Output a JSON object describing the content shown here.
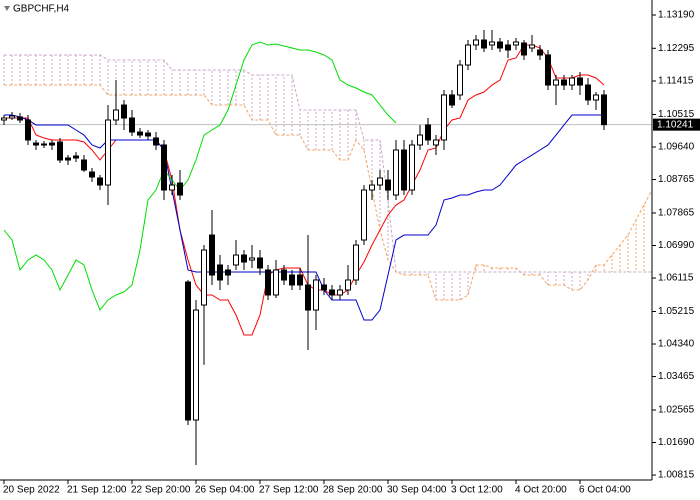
{
  "chart_data": {
    "type": "candlestick",
    "title": "GBPCHF,H4",
    "categories": [
      "20 Sep 2022",
      null,
      null,
      null,
      null,
      null,
      null,
      null,
      "21 Sep 12:00",
      null,
      null,
      null,
      null,
      null,
      null,
      null,
      "22 Sep 20:00",
      null,
      null,
      null,
      null,
      null,
      null,
      null,
      "26 Sep 04:00",
      null,
      null,
      null,
      null,
      null,
      null,
      null,
      "27 Sep 12:00",
      null,
      null,
      null,
      null,
      null,
      null,
      null,
      "28 Sep 20:00",
      null,
      null,
      null,
      null,
      null,
      null,
      null,
      "30 Sep 04:00",
      null,
      null,
      null,
      null,
      null,
      null,
      null,
      "3 Oct 12:00",
      null,
      null,
      null,
      null,
      null,
      null,
      null,
      "4 Oct 20:00",
      null,
      null,
      null,
      null,
      null,
      null,
      null,
      "6 Oct 04:00",
      null,
      null,
      null,
      null,
      null,
      null,
      null,
      null,
      null
    ],
    "open": [
      1.10366,
      1.1042,
      1.10447,
      1.10366,
      1.09747,
      1.0972,
      1.09747,
      1.09774,
      1.09344,
      1.09398,
      1.0929,
      1.08967,
      1.08806,
      1.08617,
      1.10366,
      1.10769,
      1.1042,
      1.10043,
      1.10016,
      1.09882,
      1.09694,
      1.08483,
      1.08671,
      1.06008,
      1.02296,
      1.05389,
      1.07272,
      1.06466,
      1.06331,
      1.06466,
      1.06734,
      1.066,
      1.06654,
      1.06331,
      1.05659,
      1.06331,
      1.06196,
      1.06196,
      1.05928,
      1.05254,
      1.05928,
      1.05793,
      1.05659,
      1.05793,
      1.06062,
      1.07138,
      1.08483,
      1.08617,
      1.08752,
      1.08348,
      1.09559,
      1.08483,
      1.09694,
      1.10232,
      1.09694,
      1.09828,
      1.11039,
      1.11039,
      1.11845,
      1.12384,
      1.12518,
      1.12384,
      1.12464,
      1.12384,
      1.12384,
      1.12437,
      1.12303,
      1.12249,
      1.12115,
      1.11307,
      1.11442,
      1.11307,
      1.11496,
      1.11307,
      1.10904,
      1.11039,
      null,
      null,
      null,
      null,
      null,
      null
    ],
    "high": [
      1.105,
      1.10581,
      1.10554,
      1.105,
      1.09828,
      1.09801,
      1.09828,
      1.09882,
      1.09424,
      1.09505,
      1.09424,
      1.09075,
      1.08886,
      1.10769,
      1.11442,
      1.10904,
      1.10635,
      1.10151,
      1.10097,
      1.10043,
      1.09828,
      1.08886,
      1.09021,
      1.06062,
      1.05524,
      1.07003,
      1.07945,
      1.06734,
      1.06466,
      1.07138,
      1.06869,
      1.07003,
      1.06869,
      1.06466,
      1.066,
      1.06466,
      1.06331,
      1.06385,
      1.07272,
      1.06196,
      1.06116,
      1.05928,
      1.05928,
      1.06466,
      1.07138,
      1.08617,
      1.08752,
      1.09021,
      1.09021,
      1.09828,
      1.09828,
      1.09828,
      1.10232,
      1.1042,
      1.09962,
      1.11173,
      1.11173,
      1.1198,
      1.12518,
      1.12653,
      1.12787,
      1.12787,
      1.12572,
      1.12518,
      1.12572,
      1.12518,
      1.12653,
      1.12384,
      1.12249,
      1.11576,
      1.11576,
      1.11576,
      1.11657,
      1.11496,
      1.11119,
      1.11173,
      null,
      null,
      null,
      null,
      null,
      null
    ],
    "low": [
      1.10232,
      1.10366,
      1.10285,
      1.09694,
      1.09559,
      1.09613,
      1.09559,
      1.09209,
      1.09155,
      1.09236,
      1.08967,
      1.08698,
      1.08483,
      1.08079,
      1.10232,
      1.10097,
      1.09936,
      1.09882,
      1.09828,
      1.09559,
      1.08214,
      1.08348,
      1.08214,
      1.02161,
      1.01086,
      1.03779,
      1.05928,
      1.05793,
      1.05928,
      1.06331,
      1.06331,
      1.06385,
      1.06196,
      1.05524,
      1.05578,
      1.05928,
      1.05793,
      1.05793,
      1.04179,
      1.04717,
      1.05659,
      1.05524,
      1.05524,
      1.05659,
      1.05928,
      1.07003,
      1.08214,
      1.08483,
      1.08214,
      1.08214,
      1.08348,
      1.08348,
      1.09559,
      1.09694,
      1.09424,
      1.09559,
      1.10689,
      1.10904,
      1.11711,
      1.12249,
      1.12195,
      1.12249,
      1.12195,
      1.12034,
      1.12249,
      1.1198,
      1.12195,
      1.1198,
      1.11173,
      1.10769,
      1.11173,
      1.11173,
      1.11039,
      1.10769,
      1.10635,
      1.10097,
      null,
      null,
      null,
      null,
      null,
      null
    ],
    "close": [
      1.1042,
      1.10474,
      1.10366,
      1.09828,
      1.09694,
      1.09694,
      1.09694,
      1.0929,
      1.0929,
      1.09344,
      1.09021,
      1.08833,
      1.08617,
      1.10366,
      1.10635,
      1.1042,
      1.10043,
      1.09962,
      1.09936,
      1.09694,
      1.08483,
      1.08617,
      1.08348,
      1.02296,
      1.05254,
      1.06869,
      1.06196,
      1.06062,
      1.06196,
      1.06734,
      1.06546,
      1.06654,
      1.06385,
      1.05659,
      1.06331,
      1.06062,
      1.05928,
      1.05928,
      1.05254,
      1.06062,
      1.05793,
      1.05659,
      1.05793,
      1.06062,
      1.07003,
      1.08483,
      1.08617,
      1.08806,
      1.08483,
      1.09559,
      1.08483,
      1.09694,
      1.09962,
      1.09828,
      1.09828,
      1.11039,
      1.10769,
      1.11845,
      1.12384,
      1.12518,
      1.12303,
      1.12464,
      1.12303,
      1.12249,
      1.12464,
      1.12115,
      1.12384,
      1.12115,
      1.11307,
      1.11442,
      1.11307,
      1.11496,
      1.11307,
      1.10904,
      1.11039,
      1.10241,
      null,
      null,
      null,
      null,
      null,
      null
    ],
    "candle_colors": {
      "up": "#ffffff",
      "down": "#000000",
      "outline": "#000000"
    },
    "lines": [
      {
        "color": "#ff0000",
        "values": [
          1.1042,
          1.1042,
          1.1042,
          1.1042,
          1.09962,
          1.09882,
          1.09828,
          1.09828,
          1.09828,
          1.09828,
          1.09774,
          1.09559,
          1.0929,
          1.09559,
          1.09828,
          1.09828,
          1.09828,
          1.09828,
          1.09828,
          1.09828,
          1.09559,
          1.08752,
          1.07407,
          1.066,
          1.05928,
          1.05659,
          1.05659,
          1.05524,
          1.05524,
          1.05121,
          1.04583,
          1.04583,
          1.05121,
          1.06196,
          1.06331,
          1.06385,
          1.06385,
          1.06385,
          1.05928,
          1.05793,
          1.05793,
          1.05659,
          1.05659,
          1.05793,
          1.06196,
          1.06546,
          1.07003,
          1.07407,
          1.07811,
          1.08079,
          1.08214,
          1.08617,
          1.09021,
          1.09559,
          1.09613,
          1.10097,
          1.10366,
          1.1042,
          1.10904,
          1.11039,
          1.11119,
          1.11307,
          1.11442,
          1.1198,
          1.12034,
          1.12384,
          1.12384,
          1.12303,
          1.12034,
          1.11496,
          1.11496,
          1.11496,
          1.11576,
          1.11576,
          1.11496,
          1.11307,
          null,
          null,
          null,
          null,
          null,
          null
        ]
      },
      {
        "color": "#0000cc",
        "values": [
          1.105,
          1.105,
          1.10447,
          1.10366,
          1.10232,
          1.10232,
          1.10232,
          1.10232,
          1.10232,
          1.10097,
          1.09962,
          1.09694,
          1.09613,
          1.09828,
          1.09828,
          1.09828,
          1.09828,
          1.09828,
          1.09828,
          1.09828,
          1.09559,
          1.08483,
          1.07407,
          1.06331,
          1.06277,
          1.06277,
          1.06277,
          1.06277,
          1.06277,
          1.06277,
          1.06277,
          1.06277,
          1.06277,
          1.06277,
          1.06277,
          1.06277,
          1.06277,
          1.06277,
          1.06277,
          1.06277,
          1.05793,
          1.05524,
          1.05524,
          1.05524,
          1.05524,
          1.04986,
          1.04986,
          1.05254,
          1.06196,
          1.07138,
          1.07272,
          1.07272,
          1.07272,
          1.07272,
          1.07541,
          1.08214,
          1.08268,
          1.08348,
          1.08348,
          1.08429,
          1.08483,
          1.08483,
          1.08617,
          1.08886,
          1.09155,
          1.0929,
          1.09424,
          1.09559,
          1.09694,
          1.09962,
          1.10232,
          1.105,
          1.105,
          1.105,
          1.105,
          1.105,
          null,
          null,
          null,
          null,
          null,
          null
        ]
      },
      {
        "color": "#00dd00",
        "values": [
          1.07407,
          1.07138,
          1.06331,
          1.066,
          1.06734,
          1.066,
          1.06331,
          1.05793,
          1.06196,
          1.066,
          1.06466,
          1.05793,
          1.05254,
          1.05524,
          1.05659,
          1.0574,
          1.05928,
          1.06869,
          1.08214,
          1.08483,
          1.09021,
          1.08752,
          1.08483,
          1.08752,
          1.0929,
          1.09962,
          1.10097,
          1.10232,
          1.10635,
          1.11307,
          1.1198,
          1.12384,
          1.12464,
          1.12384,
          1.1241,
          1.12357,
          1.12303,
          1.12249,
          1.12249,
          1.12195,
          1.12115,
          1.1198,
          1.11442,
          1.11307,
          1.11227,
          1.11119,
          1.11039,
          1.10769,
          1.105,
          1.10285,
          null,
          null,
          null,
          null,
          null,
          null,
          null,
          null,
          null,
          null,
          null,
          null,
          null,
          null,
          null,
          null,
          null,
          null,
          null,
          null,
          null,
          null,
          null,
          null,
          null,
          null,
          null,
          null,
          null,
          null,
          null,
          null
        ]
      }
    ],
    "span_a": {
      "color": "#f4a460",
      "values": [
        1.11307,
        1.11307,
        1.11307,
        1.11307,
        1.11307,
        1.11307,
        1.11307,
        1.11307,
        1.11307,
        1.11307,
        1.11307,
        1.11307,
        1.11307,
        1.11039,
        1.11039,
        1.11039,
        1.11039,
        1.11039,
        1.11039,
        1.11039,
        1.11039,
        1.11039,
        1.11039,
        1.11039,
        1.11039,
        1.11039,
        1.10769,
        1.10769,
        1.10769,
        1.10769,
        1.10769,
        1.10366,
        1.10366,
        1.10366,
        1.09962,
        1.09962,
        1.09962,
        1.09962,
        1.09559,
        1.09559,
        1.09559,
        1.09559,
        1.0929,
        1.0929,
        1.09828,
        1.09559,
        1.08483,
        1.07407,
        1.066,
        1.06277,
        1.06196,
        1.06196,
        1.06196,
        1.06196,
        1.05524,
        1.05524,
        1.05524,
        1.05524,
        1.05659,
        1.06466,
        1.06466,
        1.06385,
        1.06385,
        1.06385,
        1.06385,
        1.06196,
        1.06196,
        1.06196,
        1.05928,
        1.05928,
        1.05928,
        1.05793,
        1.05793,
        1.06062,
        1.06466,
        1.06466,
        1.06734,
        1.07003,
        1.07272,
        1.07676,
        1.08079,
        1.08483
      ]
    },
    "span_b": {
      "color": "#c8a8c8",
      "values": [
        1.12115,
        1.12115,
        1.12115,
        1.12115,
        1.12115,
        1.12115,
        1.12115,
        1.12115,
        1.12115,
        1.12115,
        1.12115,
        1.12115,
        1.12115,
        1.1198,
        1.1198,
        1.1198,
        1.1198,
        1.1198,
        1.1198,
        1.1198,
        1.1198,
        1.11711,
        1.11711,
        1.11711,
        1.11711,
        1.11711,
        1.11711,
        1.11711,
        1.11711,
        1.11711,
        1.11711,
        1.11576,
        1.11576,
        1.11576,
        1.11576,
        1.11576,
        1.11576,
        1.10635,
        1.10635,
        1.10635,
        1.10635,
        1.10635,
        1.10635,
        1.10635,
        1.10635,
        1.09828,
        1.09828,
        1.09828,
        1.08214,
        1.06277,
        1.06277,
        1.06277,
        1.06277,
        1.06277,
        1.06277,
        1.06277,
        1.06277,
        1.06277,
        1.06277,
        1.06277,
        1.06277,
        1.06277,
        1.06277,
        1.06277,
        1.06277,
        1.06277,
        1.06277,
        1.06277,
        1.06277,
        1.06277,
        1.06277,
        1.06277,
        1.06277,
        1.06277,
        1.06277,
        1.06277,
        1.06277,
        1.06277,
        1.06277,
        1.06277,
        1.06277,
        1.06277
      ]
    },
    "cloud_colors": {
      "up": "#f4a460",
      "down": "#c8a8c8"
    },
    "current_price": 1.10241,
    "ylim": [
      1.00682,
      1.13594
    ],
    "yticks": [
      {
        "value": 1.1319,
        "label": "1.13190"
      },
      1.12295,
      1.11415,
      1.10515,
      {
        "value": 1.0964,
        "label": "1.09640"
      },
      1.08765,
      1.07865,
      {
        "value": 1.0699,
        "label": "1.06990"
      },
      1.06115,
      1.05215,
      {
        "value": 1.0434,
        "label": "1.04340"
      },
      1.03465,
      1.02565,
      {
        "value": 1.0169,
        "label": "1.01690"
      },
      1.00815
    ]
  }
}
